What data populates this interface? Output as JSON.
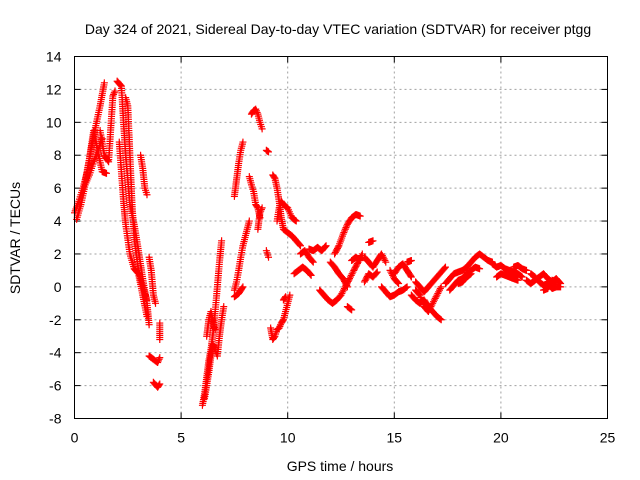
{
  "chart_data": {
    "type": "scatter",
    "title": "Day 324 of 2021, Sidereal Day-to-day VTEC variation (SDTVAR) for receiver ptgg",
    "xlabel": "GPS time / hours",
    "ylabel": "SDTVAR / TECUs",
    "xlim": [
      0,
      25
    ],
    "ylim": [
      -8,
      14
    ],
    "xticks": [
      "0",
      "5",
      "10",
      "15",
      "20",
      "25"
    ],
    "yticks": [
      "-8",
      "-6",
      "-4",
      "-2",
      "0",
      "2",
      "4",
      "6",
      "8",
      "10",
      "12",
      "14"
    ],
    "grid": true,
    "marker": "+",
    "color": "#ff0000",
    "traces": [
      [
        [
          0.0,
          4.5
        ],
        [
          0.2,
          5.2
        ],
        [
          0.4,
          6.0
        ],
        [
          0.6,
          7.0
        ],
        [
          0.8,
          8.5
        ],
        [
          1.0,
          9.8
        ],
        [
          1.2,
          11.0
        ],
        [
          1.4,
          12.4
        ]
      ],
      [
        [
          0.1,
          4.1
        ],
        [
          0.3,
          5.0
        ],
        [
          0.5,
          6.2
        ],
        [
          0.7,
          6.8
        ],
        [
          0.9,
          7.6
        ],
        [
          1.1,
          8.3
        ],
        [
          1.3,
          9.0
        ]
      ],
      [
        [
          0.5,
          6.4
        ],
        [
          0.7,
          7.8
        ],
        [
          0.9,
          9.5
        ],
        [
          1.1,
          8.2
        ],
        [
          1.3,
          7.0
        ],
        [
          1.5,
          6.9
        ]
      ],
      [
        [
          1.2,
          9.5
        ],
        [
          1.4,
          8.0
        ],
        [
          1.6,
          7.6
        ],
        [
          1.8,
          11.6
        ],
        [
          1.9,
          11.9
        ]
      ],
      [
        [
          2.0,
          12.5
        ],
        [
          2.2,
          12.2
        ],
        [
          2.3,
          10.0
        ],
        [
          2.4,
          8.0
        ],
        [
          2.5,
          6.5
        ],
        [
          2.6,
          5.0
        ],
        [
          2.8,
          3.8
        ],
        [
          3.0,
          2.2
        ],
        [
          3.2,
          0.5
        ],
        [
          3.4,
          -1.0
        ],
        [
          3.5,
          -2.3
        ]
      ],
      [
        [
          2.1,
          8.8
        ],
        [
          2.2,
          7.0
        ],
        [
          2.3,
          5.2
        ],
        [
          2.4,
          3.8
        ],
        [
          2.6,
          2.0
        ],
        [
          2.8,
          1.1
        ],
        [
          3.0,
          0.8
        ],
        [
          3.2,
          -0.5
        ],
        [
          3.4,
          -1.8
        ]
      ],
      [
        [
          2.4,
          11.5
        ],
        [
          2.5,
          11.0
        ],
        [
          2.6,
          8.0
        ],
        [
          2.7,
          5.0
        ],
        [
          2.8,
          3.0
        ],
        [
          3.0,
          1.0
        ],
        [
          3.2,
          0.0
        ],
        [
          3.4,
          -0.8
        ]
      ],
      [
        [
          3.1,
          8.0
        ],
        [
          3.2,
          7.2
        ],
        [
          3.3,
          6.0
        ],
        [
          3.4,
          5.6
        ]
      ],
      [
        [
          3.5,
          1.8
        ],
        [
          3.6,
          1.0
        ],
        [
          3.7,
          -0.5
        ],
        [
          3.8,
          -1.0
        ]
      ],
      [
        [
          3.5,
          -4.2
        ],
        [
          3.7,
          -4.4
        ],
        [
          3.9,
          -4.6
        ],
        [
          4.0,
          -4.3
        ]
      ],
      [
        [
          3.7,
          -5.8
        ],
        [
          3.9,
          -6.1
        ],
        [
          4.0,
          -5.9
        ]
      ],
      [
        [
          4.0,
          -2.2
        ],
        [
          4.0,
          -3.2
        ]
      ],
      [
        [
          6.0,
          -7.2
        ],
        [
          6.1,
          -6.5
        ],
        [
          6.2,
          -5.5
        ],
        [
          6.3,
          -4.5
        ],
        [
          6.4,
          -3.8
        ],
        [
          6.5,
          -2.8
        ],
        [
          6.6,
          -1.5
        ],
        [
          6.7,
          0.0
        ],
        [
          6.8,
          1.5
        ],
        [
          6.9,
          2.8
        ]
      ],
      [
        [
          6.1,
          -6.8
        ],
        [
          6.2,
          -6.0
        ],
        [
          6.3,
          -5.2
        ],
        [
          6.4,
          -4.2
        ],
        [
          6.5,
          -3.5
        ],
        [
          6.6,
          -3.8
        ],
        [
          6.7,
          -4.2
        ],
        [
          6.8,
          -3.0
        ],
        [
          6.9,
          -2.0
        ],
        [
          7.0,
          -1.2
        ]
      ],
      [
        [
          6.2,
          -3.0
        ],
        [
          6.3,
          -2.0
        ],
        [
          6.4,
          -1.5
        ],
        [
          6.5,
          -2.2
        ],
        [
          6.6,
          -2.6
        ]
      ],
      [
        [
          7.5,
          5.5
        ],
        [
          7.6,
          6.5
        ],
        [
          7.7,
          7.5
        ],
        [
          7.8,
          8.3
        ],
        [
          7.9,
          8.8
        ]
      ],
      [
        [
          7.5,
          -0.2
        ],
        [
          7.6,
          0.3
        ],
        [
          7.7,
          1.0
        ],
        [
          7.8,
          1.8
        ],
        [
          7.9,
          2.5
        ],
        [
          8.0,
          3.0
        ],
        [
          8.1,
          3.5
        ],
        [
          8.2,
          4.0
        ]
      ],
      [
        [
          7.5,
          -0.6
        ],
        [
          7.7,
          -0.4
        ],
        [
          7.9,
          0.0
        ]
      ],
      [
        [
          8.2,
          6.7
        ],
        [
          8.3,
          6.2
        ],
        [
          8.4,
          5.8
        ],
        [
          8.5,
          5.0
        ],
        [
          8.6,
          4.8
        ],
        [
          8.7,
          4.2
        ]
      ],
      [
        [
          8.3,
          10.5
        ],
        [
          8.4,
          10.7
        ],
        [
          8.5,
          10.8
        ],
        [
          8.6,
          10.5
        ],
        [
          8.7,
          10.0
        ],
        [
          8.8,
          9.6
        ]
      ],
      [
        [
          8.6,
          3.5
        ],
        [
          8.7,
          4.5
        ],
        [
          8.8,
          4.8
        ]
      ],
      [
        [
          9.0,
          8.3
        ],
        [
          9.1,
          8.2
        ]
      ],
      [
        [
          9.0,
          2.2
        ],
        [
          9.1,
          1.8
        ]
      ],
      [
        [
          9.3,
          6.8
        ],
        [
          9.4,
          6.6
        ],
        [
          9.5,
          6.0
        ],
        [
          9.6,
          5.2
        ],
        [
          9.7,
          4.2
        ],
        [
          9.8,
          3.5
        ],
        [
          10.0,
          3.3
        ],
        [
          10.2,
          3.1
        ],
        [
          10.4,
          2.8
        ],
        [
          10.6,
          2.5
        ]
      ],
      [
        [
          9.5,
          4.0
        ],
        [
          9.6,
          4.8
        ],
        [
          9.7,
          5.2
        ],
        [
          9.8,
          5.0
        ],
        [
          10.0,
          4.8
        ],
        [
          10.2,
          4.2
        ],
        [
          10.4,
          4.0
        ]
      ],
      [
        [
          9.2,
          -2.5
        ],
        [
          9.3,
          -3.2
        ],
        [
          9.4,
          -3.0
        ],
        [
          9.5,
          -2.6
        ],
        [
          9.6,
          -2.5
        ],
        [
          9.7,
          -2.2
        ],
        [
          9.8,
          -2.0
        ],
        [
          9.9,
          -1.5
        ],
        [
          10.0,
          -1.0
        ],
        [
          10.1,
          -0.5
        ]
      ],
      [
        [
          9.8,
          -0.8
        ],
        [
          9.9,
          -0.6
        ]
      ],
      [
        [
          10.3,
          0.8
        ],
        [
          10.5,
          1.0
        ],
        [
          10.7,
          1.2
        ],
        [
          10.9,
          1.0
        ],
        [
          11.1,
          0.7
        ]
      ],
      [
        [
          10.6,
          2.0
        ],
        [
          10.8,
          2.2
        ],
        [
          11.0,
          1.8
        ],
        [
          11.2,
          1.5
        ]
      ],
      [
        [
          11.0,
          2.3
        ],
        [
          11.2,
          2.2
        ],
        [
          11.4,
          2.4
        ],
        [
          11.6,
          2.2
        ],
        [
          11.8,
          2.5
        ]
      ],
      [
        [
          11.5,
          -0.2
        ],
        [
          11.7,
          -0.5
        ],
        [
          11.9,
          -0.8
        ],
        [
          12.1,
          -1.0
        ],
        [
          12.3,
          -0.8
        ],
        [
          12.5,
          -0.5
        ],
        [
          12.7,
          0.0
        ],
        [
          12.9,
          0.5
        ],
        [
          13.1,
          1.0
        ],
        [
          13.3,
          1.5
        ],
        [
          13.5,
          2.0
        ]
      ],
      [
        [
          12.2,
          2.0
        ],
        [
          12.4,
          2.5
        ],
        [
          12.6,
          3.2
        ],
        [
          12.8,
          3.8
        ],
        [
          13.0,
          4.2
        ],
        [
          13.2,
          4.4
        ],
        [
          13.4,
          4.3
        ]
      ],
      [
        [
          12.0,
          1.5
        ],
        [
          12.2,
          1.2
        ],
        [
          12.4,
          0.8
        ],
        [
          12.6,
          0.5
        ],
        [
          12.8,
          0.0
        ]
      ],
      [
        [
          12.8,
          -1.2
        ],
        [
          13.0,
          -1.4
        ]
      ],
      [
        [
          13.0,
          1.6
        ],
        [
          13.2,
          1.8
        ],
        [
          13.4,
          1.6
        ]
      ],
      [
        [
          13.6,
          1.8
        ],
        [
          13.8,
          1.5
        ],
        [
          14.0,
          1.2
        ],
        [
          14.2,
          1.6
        ],
        [
          14.4,
          2.0
        ],
        [
          14.6,
          1.5
        ]
      ],
      [
        [
          13.6,
          0.3
        ],
        [
          13.8,
          0.8
        ],
        [
          14.0,
          0.6
        ],
        [
          14.2,
          0.9
        ]
      ],
      [
        [
          13.8,
          2.7
        ],
        [
          14.0,
          2.8
        ]
      ],
      [
        [
          14.4,
          0.0
        ],
        [
          14.6,
          -0.3
        ],
        [
          14.8,
          -0.6
        ],
        [
          15.0,
          -0.5
        ],
        [
          15.2,
          -0.3
        ],
        [
          15.4,
          -0.2
        ],
        [
          15.6,
          0.0
        ]
      ],
      [
        [
          15.0,
          0.8
        ],
        [
          15.2,
          1.2
        ],
        [
          15.4,
          1.4
        ],
        [
          15.6,
          1.0
        ],
        [
          15.8,
          0.6
        ]
      ],
      [
        [
          14.8,
          1.0
        ],
        [
          15.0,
          0.5
        ],
        [
          15.2,
          0.2
        ]
      ],
      [
        [
          15.8,
          -0.5
        ],
        [
          16.0,
          -0.8
        ],
        [
          16.2,
          -1.0
        ],
        [
          16.4,
          -0.8
        ],
        [
          16.6,
          -1.2
        ],
        [
          16.8,
          -1.5
        ],
        [
          17.0,
          -1.8
        ],
        [
          17.2,
          -2.0
        ]
      ],
      [
        [
          16.0,
          0.3
        ],
        [
          16.2,
          0.0
        ],
        [
          16.4,
          -0.3
        ],
        [
          16.6,
          0.0
        ],
        [
          16.8,
          0.3
        ],
        [
          17.0,
          0.6
        ],
        [
          17.2,
          0.9
        ],
        [
          17.4,
          1.2
        ]
      ],
      [
        [
          16.0,
          -0.2
        ],
        [
          16.2,
          -0.5
        ],
        [
          16.4,
          -1.2
        ],
        [
          16.6,
          -1.5
        ],
        [
          16.8,
          -1.0
        ],
        [
          17.0,
          -0.5
        ],
        [
          17.2,
          0.0
        ]
      ],
      [
        [
          15.6,
          1.5
        ],
        [
          15.8,
          1.6
        ]
      ],
      [
        [
          17.4,
          0.2
        ],
        [
          17.6,
          0.5
        ],
        [
          17.8,
          0.8
        ],
        [
          18.0,
          0.9
        ],
        [
          18.2,
          1.0
        ],
        [
          18.4,
          1.2
        ],
        [
          18.6,
          1.5
        ],
        [
          18.8,
          1.8
        ],
        [
          19.0,
          2.0
        ],
        [
          19.2,
          1.8
        ],
        [
          19.4,
          1.6
        ],
        [
          19.6,
          1.5
        ]
      ],
      [
        [
          17.6,
          -0.2
        ],
        [
          17.8,
          0.1
        ],
        [
          18.0,
          0.4
        ],
        [
          18.2,
          0.5
        ],
        [
          18.4,
          0.8
        ],
        [
          18.6,
          1.0
        ],
        [
          18.8,
          1.2
        ],
        [
          19.0,
          1.1
        ]
      ],
      [
        [
          18.0,
          0.2
        ],
        [
          18.2,
          0.3
        ],
        [
          18.4,
          0.6
        ],
        [
          18.6,
          0.8
        ]
      ],
      [
        [
          19.6,
          1.4
        ],
        [
          19.8,
          1.2
        ],
        [
          20.0,
          1.3
        ],
        [
          20.2,
          1.1
        ],
        [
          20.4,
          1.0
        ],
        [
          20.6,
          0.9
        ],
        [
          20.8,
          0.8
        ],
        [
          21.0,
          0.6
        ]
      ],
      [
        [
          19.8,
          0.6
        ],
        [
          20.0,
          0.8
        ],
        [
          20.2,
          0.7
        ],
        [
          20.4,
          0.6
        ],
        [
          20.6,
          0.5
        ],
        [
          20.8,
          0.4
        ]
      ],
      [
        [
          20.6,
          1.2
        ],
        [
          20.8,
          1.3
        ],
        [
          21.0,
          1.1
        ],
        [
          21.2,
          1.0
        ]
      ],
      [
        [
          21.2,
          0.4
        ],
        [
          21.4,
          0.2
        ],
        [
          21.6,
          0.4
        ],
        [
          21.8,
          0.6
        ],
        [
          22.0,
          0.8
        ],
        [
          22.2,
          0.5
        ],
        [
          22.4,
          0.3
        ],
        [
          22.6,
          0.5
        ],
        [
          22.8,
          0.2
        ]
      ],
      [
        [
          21.4,
          0.8
        ],
        [
          21.6,
          0.6
        ],
        [
          21.8,
          0.3
        ],
        [
          22.0,
          0.1
        ],
        [
          22.2,
          0.2
        ],
        [
          22.4,
          -0.1
        ],
        [
          22.6,
          0.0
        ],
        [
          22.8,
          0.0
        ]
      ],
      [
        [
          22.0,
          -0.2
        ],
        [
          22.2,
          -0.1
        ],
        [
          22.4,
          0.4
        ],
        [
          22.6,
          0.3
        ]
      ]
    ]
  }
}
